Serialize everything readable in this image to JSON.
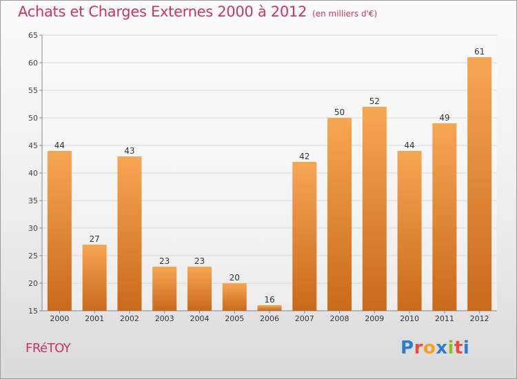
{
  "title": "Achats et Charges Externes 2000 à 2012",
  "subtitle": "(en milliers d'€)",
  "town": "FRéTOY",
  "logo": {
    "letters": [
      "P",
      "r",
      "o",
      "x",
      "i",
      "t",
      "i"
    ],
    "colors": [
      "#2e7fc9",
      "#e84c3d",
      "#f2a31b",
      "#2e7fc9",
      "#8cbf26",
      "#e84c3d",
      "#2e7fc9"
    ]
  },
  "colors": {
    "title": "#cc3366",
    "bar_light": "#f7a653",
    "bar_dark": "#c96a1a",
    "grid": "#d6d6d6"
  },
  "chart_data": {
    "type": "bar",
    "categories": [
      "2000",
      "2001",
      "2002",
      "2003",
      "2004",
      "2005",
      "2006",
      "2007",
      "2008",
      "2009",
      "2010",
      "2011",
      "2012"
    ],
    "values": [
      44,
      27,
      43,
      23,
      23,
      20,
      16,
      42,
      50,
      52,
      44,
      49,
      61
    ],
    "ylim": [
      15,
      65
    ],
    "yticks": [
      15,
      20,
      25,
      30,
      35,
      40,
      45,
      50,
      55,
      60,
      65
    ],
    "grid": true
  }
}
